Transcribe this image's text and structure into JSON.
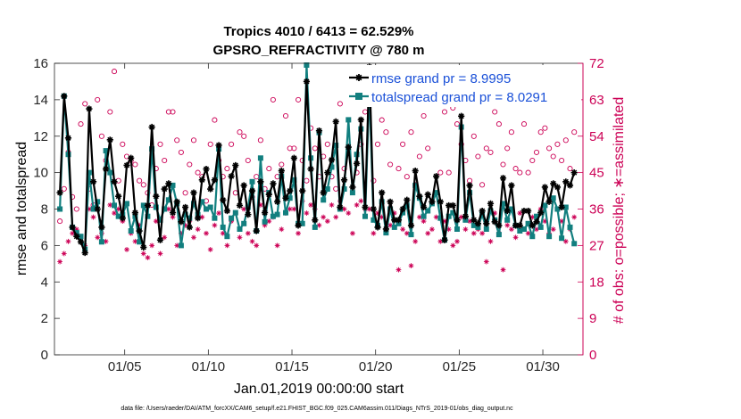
{
  "chart_data": {
    "type": "line",
    "title": "Tropics 4010 / 6413 = 62.529%",
    "subtitle": "GPSRO_REFRACTIVITY @ 780 m",
    "xlabel": "Jan.01,2019 00:00:00 start",
    "ylabel": "rmse and totalspread",
    "y2label": "# of obs: o=possible; ∗=assimilated",
    "footnote": "data file: /Users/raeder/DAI/ATM_forcXX/CAM6_setup/f.e21.FHIST_BGC.f09_025.CAM6assim.011/Diags_NTrS_2019-01/obs_diag_output.nc",
    "xlim": [
      0.8,
      32.4
    ],
    "ylim": [
      0,
      16
    ],
    "y2lim": [
      0,
      72
    ],
    "xticks": [
      5,
      10,
      15,
      20,
      25,
      30
    ],
    "xtick_labels": [
      "01/05",
      "01/10",
      "01/15",
      "01/20",
      "01/25",
      "01/30"
    ],
    "yticks": [
      0,
      2,
      4,
      6,
      8,
      10,
      12,
      14,
      16
    ],
    "y2ticks": [
      0,
      9,
      18,
      27,
      36,
      45,
      54,
      63,
      72
    ],
    "legend": [
      "rmse grand pr = 8.9995",
      "totalspread grand pr = 8.0291"
    ],
    "legend_position": "top-right",
    "colors": {
      "rmse": "#000000",
      "spread": "#127f7f",
      "obs": "#cc0055",
      "legend_text": "#1a50d8"
    },
    "x": [
      1.125,
      1.375,
      1.625,
      1.875,
      2.125,
      2.375,
      2.625,
      2.875,
      3.125,
      3.375,
      3.625,
      3.875,
      4.125,
      4.375,
      4.625,
      4.875,
      5.125,
      5.375,
      5.625,
      5.875,
      6.125,
      6.375,
      6.625,
      6.875,
      7.125,
      7.375,
      7.625,
      7.875,
      8.125,
      8.375,
      8.625,
      8.875,
      9.125,
      9.375,
      9.625,
      9.875,
      10.125,
      10.375,
      10.625,
      10.875,
      11.125,
      11.375,
      11.625,
      11.875,
      12.125,
      12.375,
      12.625,
      12.875,
      13.125,
      13.375,
      13.625,
      13.875,
      14.125,
      14.375,
      14.625,
      14.875,
      15.125,
      15.375,
      15.625,
      15.875,
      16.125,
      16.375,
      16.625,
      16.875,
      17.125,
      17.375,
      17.625,
      17.875,
      18.125,
      18.375,
      18.625,
      18.875,
      19.125,
      19.375,
      19.625,
      19.875,
      20.125,
      20.375,
      20.625,
      20.875,
      21.125,
      21.375,
      21.625,
      21.875,
      22.125,
      22.375,
      22.625,
      22.875,
      23.125,
      23.375,
      23.625,
      23.875,
      24.125,
      24.375,
      24.625,
      24.875,
      25.125,
      25.375,
      25.625,
      25.875,
      26.125,
      26.375,
      26.625,
      26.875,
      27.125,
      27.375,
      27.625,
      27.875,
      28.125,
      28.375,
      28.625,
      28.875,
      29.125,
      29.375,
      29.625,
      29.875,
      30.125,
      30.375,
      30.625,
      30.875,
      31.125,
      31.375,
      31.625,
      31.875
    ],
    "series": [
      {
        "name": "rmse",
        "marker": "asterisk",
        "axis": "left",
        "values": [
          8.9,
          14.2,
          11.9,
          7.0,
          6.5,
          6.2,
          5.6,
          13.5,
          9.5,
          8.0,
          7.0,
          10.2,
          11.8,
          9.5,
          8.7,
          7.5,
          10.4,
          10.8,
          7.8,
          6.8,
          5.9,
          8.2,
          12.5,
          8.7,
          6.3,
          9.1,
          9.4,
          7.8,
          8.4,
          7.3,
          8.1,
          7.0,
          8.9,
          7.5,
          9.6,
          10.2,
          9.1,
          9.6,
          11.5,
          8.5,
          7.9,
          9.8,
          10.4,
          8.2,
          9.3,
          7.7,
          9.0,
          6.8,
          9.5,
          7.8,
          8.8,
          9.4,
          8.4,
          10.1,
          8.6,
          9.0,
          10.8,
          7.1,
          9.0,
          15.0,
          10.2,
          7.4,
          12.3,
          8.9,
          10.0,
          10.7,
          12.8,
          8.1,
          9.6,
          11.4,
          9.2,
          10.5,
          12.9,
          8.1,
          15.8,
          8.0,
          7.0,
          8.9,
          6.9,
          8.4,
          7.4,
          7.4,
          8.0,
          8.5,
          7.1,
          10.1,
          8.7,
          8.1,
          8.8,
          8.4,
          9.8,
          8.4,
          6.3,
          8.2,
          8.2,
          7.4,
          13.1,
          7.6,
          9.3,
          7.4,
          7.2,
          7.9,
          7.2,
          8.3,
          7.3,
          7.1,
          9.7,
          7.9,
          9.3,
          7.1,
          7.1,
          7.9,
          7.9,
          7.1,
          7.3,
          7.8,
          9.2,
          8.4,
          9.4,
          9.2,
          8.1,
          9.5,
          9.3,
          10.0
        ]
      },
      {
        "name": "totalspread",
        "marker": "square",
        "axis": "left",
        "values": [
          8.0,
          14.2,
          11.0,
          7.0,
          6.7,
          6.5,
          5.8,
          10.0,
          8.0,
          8.4,
          6.2,
          11.2,
          10.0,
          8.2,
          7.6,
          7.7,
          8.3,
          6.8,
          7.6,
          6.2,
          8.2,
          7.6,
          11.3,
          8.1,
          7.4,
          8.0,
          8.5,
          9.3,
          8.3,
          6.0,
          7.7,
          7.5,
          8.3,
          7.7,
          8.4,
          8.0,
          8.1,
          7.5,
          11.3,
          7.0,
          6.5,
          7.5,
          7.8,
          6.9,
          7.2,
          8.1,
          9.5,
          6.8,
          10.8,
          7.3,
          8.9,
          7.6,
          7.7,
          9.8,
          7.8,
          8.6,
          9.6,
          7.2,
          7.2,
          15.9,
          10.8,
          7.0,
          12.2,
          8.5,
          9.1,
          10.3,
          11.5,
          8.0,
          9.1,
          12.9,
          8.9,
          11.0,
          12.4,
          7.6,
          14.6,
          7.4,
          7.1,
          8.4,
          6.7,
          8.0,
          7.0,
          7.2,
          7.8,
          8.2,
          6.6,
          9.3,
          8.6,
          7.6,
          7.9,
          8.3,
          8.9,
          7.5,
          6.3,
          7.6,
          7.8,
          6.9,
          12.5,
          7.4,
          8.9,
          7.1,
          7.0,
          7.7,
          6.9,
          7.9,
          7.4,
          6.6,
          8.3,
          7.4,
          8.0,
          7.1,
          6.8,
          6.9,
          7.2,
          6.5,
          7.6,
          7.0,
          8.2,
          6.5,
          8.6,
          8.0,
          6.4,
          8.1,
          7.0,
          6.1
        ]
      },
      {
        "name": "possible obs",
        "marker": "circle",
        "axis": "right",
        "values": [
          33,
          41,
          50,
          39,
          36,
          57,
          62,
          41,
          37,
          63,
          54,
          48,
          60,
          70,
          43,
          52,
          49,
          48,
          47,
          43,
          42,
          40,
          37,
          46,
          52,
          48,
          60,
          60,
          53,
          50,
          40,
          47,
          53,
          45,
          44,
          38,
          52,
          58,
          48,
          44,
          46,
          52,
          40,
          55,
          54,
          48,
          39,
          44,
          53,
          41,
          46,
          63,
          44,
          47,
          59,
          51,
          51,
          63,
          48,
          43,
          56,
          51,
          44,
          49,
          52,
          44,
          41,
          62,
          46,
          67,
          65,
          45,
          52,
          60,
          67,
          43,
          52,
          58,
          55,
          47,
          62,
          46,
          52,
          44,
          55,
          42,
          49,
          59,
          51,
          62,
          63,
          45,
          60,
          45,
          61,
          57,
          52,
          48,
          43,
          54,
          49,
          42,
          51,
          50,
          60,
          57,
          47,
          51,
          55,
          46,
          45,
          57,
          45,
          48,
          50,
          55,
          56,
          51,
          49,
          52,
          48,
          53,
          46,
          55
        ]
      },
      {
        "name": "assimilated obs",
        "marker": "asterisk",
        "axis": "right",
        "values": [
          23,
          25,
          28,
          30,
          31,
          29,
          27,
          36,
          34,
          29,
          30,
          28,
          37,
          35,
          36,
          33,
          26,
          30,
          28,
          32,
          25,
          24,
          27,
          33,
          25,
          29,
          36,
          34,
          27,
          30,
          32,
          33,
          29,
          31,
          34,
          30,
          26,
          32,
          35,
          30,
          27,
          33,
          35,
          29,
          36,
          30,
          28,
          27,
          37,
          32,
          33,
          34,
          27,
          31,
          35,
          36,
          36,
          30,
          38,
          35,
          37,
          36,
          32,
          34,
          33,
          37,
          34,
          38,
          36,
          35,
          30,
          37,
          38,
          36,
          36,
          30,
          35,
          34,
          31,
          32,
          35,
          21,
          31,
          30,
          22,
          28,
          34,
          33,
          30,
          31,
          34,
          28,
          33,
          31,
          27,
          28,
          34,
          31,
          33,
          30,
          31,
          30,
          23,
          28,
          35,
          30,
          21,
          32,
          31,
          29,
          35,
          31,
          30,
          34,
          31,
          36,
          33,
          30,
          31,
          36,
          33,
          28,
          31,
          34
        ]
      }
    ]
  }
}
